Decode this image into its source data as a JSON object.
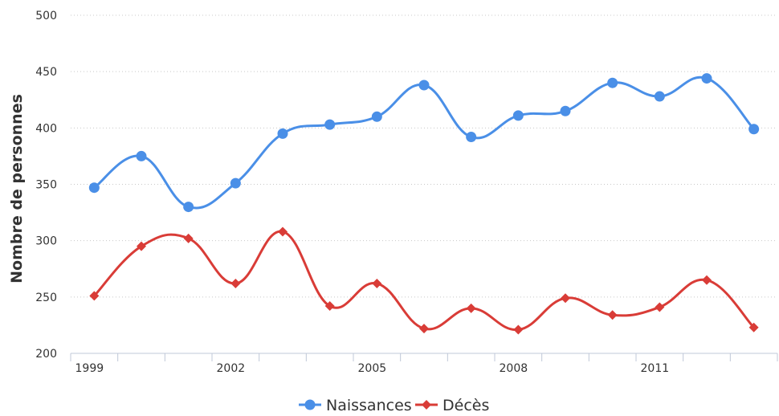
{
  "chart_data": {
    "type": "line",
    "title": "",
    "xlabel": "",
    "ylabel": "Nombre de personnes",
    "x": [
      1999,
      2000,
      2001,
      2002,
      2003,
      2004,
      2005,
      2006,
      2007,
      2008,
      2009,
      2010,
      2011,
      2012,
      2013
    ],
    "x_tick_labels": [
      "1999",
      "2002",
      "2005",
      "2008",
      "2011"
    ],
    "ylim": [
      200,
      500
    ],
    "y_ticks": [
      "200",
      "250",
      "300",
      "350",
      "400",
      "450",
      "500"
    ],
    "grid": true,
    "smooth": true,
    "legend": "bottom",
    "series": [
      {
        "name": "Naissances",
        "marker": "circle",
        "color": "#4a8fe7",
        "values": [
          347,
          375,
          330,
          351,
          395,
          403,
          410,
          438,
          392,
          411,
          415,
          440,
          428,
          444,
          399
        ]
      },
      {
        "name": "Décès",
        "marker": "diamond",
        "color": "#d93c37",
        "values": [
          251,
          295,
          302,
          262,
          308,
          242,
          262,
          222,
          240,
          221,
          249,
          234,
          241,
          265,
          223
        ]
      }
    ]
  }
}
